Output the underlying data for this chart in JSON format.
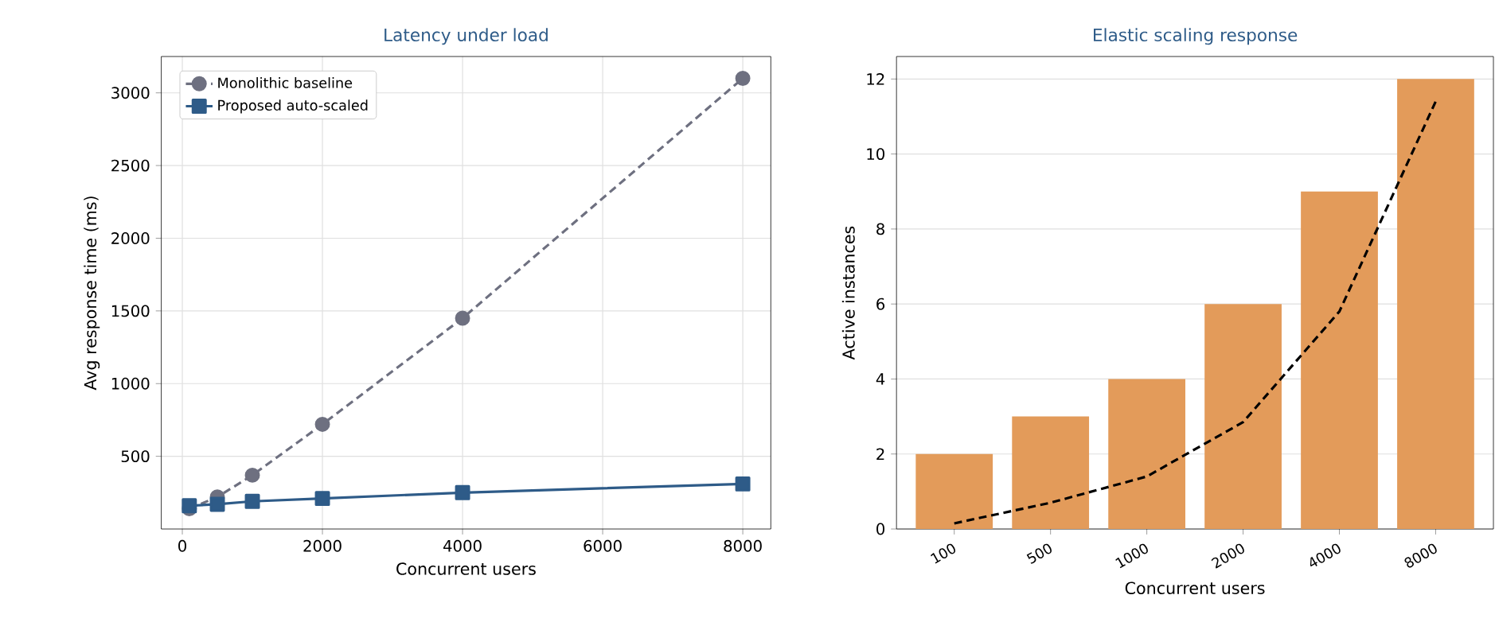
{
  "chart_data": [
    {
      "type": "line",
      "title": "Latency under load",
      "xlabel": "Concurrent users",
      "ylabel": "Avg response time (ms)",
      "x": [
        100,
        500,
        1000,
        2000,
        4000,
        8000
      ],
      "series": [
        {
          "name": "Monolithic baseline",
          "color": "#6e7080",
          "marker": "circle",
          "line_style": "dashed",
          "values": [
            140,
            220,
            370,
            720,
            1450,
            3100
          ]
        },
        {
          "name": "Proposed auto-scaled",
          "color": "#2e5b88",
          "marker": "square",
          "line_style": "solid",
          "values": [
            160,
            170,
            190,
            210,
            250,
            310
          ]
        }
      ],
      "xlim": [
        -300,
        8400
      ],
      "ylim": [
        0,
        3250
      ],
      "xticks": [
        0,
        2000,
        4000,
        6000,
        8000
      ],
      "yticks": [
        500,
        1000,
        1500,
        2000,
        2500,
        3000
      ],
      "grid": true,
      "legend": "top left"
    },
    {
      "type": "bar",
      "title": "Elastic scaling response",
      "xlabel": "Concurrent users",
      "ylabel": "Active instances",
      "categories": [
        "100",
        "500",
        "1000",
        "2000",
        "4000",
        "8000"
      ],
      "series": [
        {
          "color": "#e39b5a",
          "values": [
            2,
            3,
            4,
            6,
            9,
            12
          ]
        },
        {
          "type": "line",
          "color": "#000000",
          "marker": "none",
          "line_style": "dashed",
          "values": [
            0.15,
            0.7,
            1.4,
            2.85,
            5.8,
            11.4
          ]
        }
      ],
      "ylim": [
        0,
        12.6
      ],
      "yticks": [
        0,
        2,
        4,
        6,
        8,
        10,
        12
      ],
      "grid": "y",
      "legend": false
    }
  ]
}
